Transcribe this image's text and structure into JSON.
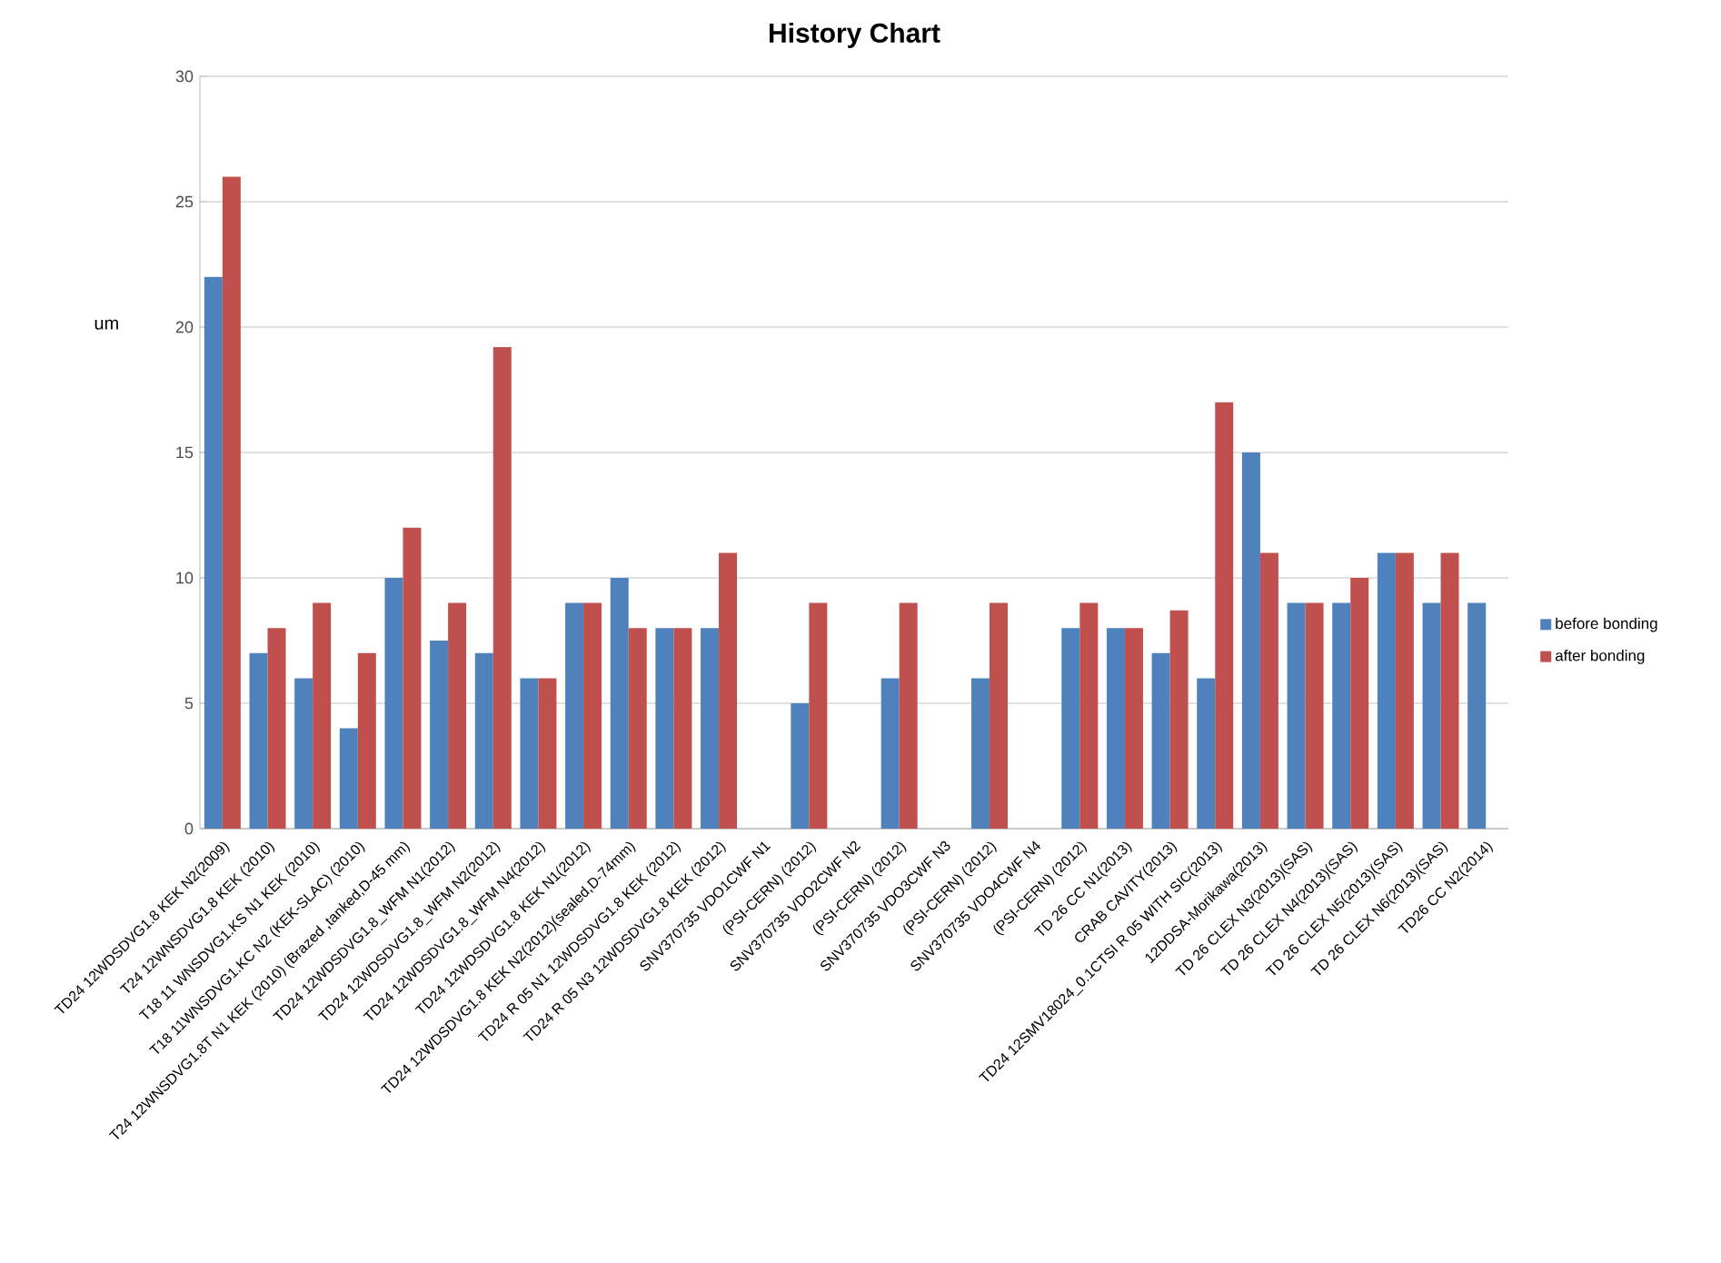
{
  "chart_data": {
    "type": "bar",
    "title": "History Chart",
    "ylabel": "um",
    "categories": [
      "TD24 12WDSDVG1.8 KEK N2(2009)",
      "T24 12WNSDVG1.8 KEK (2010)",
      "T18 11 WNSDVG1.KS N1 KEK (2010)",
      "T18 11WNSDVG1.KC N2 (KEK-SLAC) (2010)",
      "T24 12WNSDVG1.8T N1 KEK (2010) (Brazed ,tanked,D-45 mm)",
      "TD24 12WDSDVG1.8_WFM N1(2012)",
      "TD24 12WDSDVG1.8_WFM N2(2012)",
      "TD24 12WDSDVG1.8_WFM N4(2012)",
      "TD24 12WDSDVG1.8 KEK N1(2012)",
      "TD24 12WDSDVG1.8 KEK N2(2012)(sealed,D-74mm)",
      "TD24 R 05 N1 12WDSDVG1.8 KEK (2012)",
      "TD24 R 05 N3 12WDSDVG1.8 KEK (2012)",
      "SNV370735 VDO1CWF  N1",
      "(PSI-CERN) (2012)",
      "SNV370735 VDO2CWF  N2",
      "(PSI-CERN) (2012)",
      "SNV370735 VDO3CWF  N3",
      "(PSI-CERN) (2012)",
      "SNV370735 VDO4CWF  N4",
      "(PSI-CERN) (2012)",
      "TD 26 CC N1(2013)",
      "CRAB CAVITY(2013)",
      "TD24 12SMV18024_0.1CTSI  R 05 WITH SIC(2013)",
      "12DDSA-Morikawa(2013)",
      "TD 26 CLEX N3(2013)(SAS)",
      "TD 26 CLEX N4(2013)(SAS)",
      "TD 26 CLEX N5(2013)(SAS)",
      "TD 26 CLEX N6(2013)(SAS)",
      "TD26 CC N2(2014)"
    ],
    "series": [
      {
        "name": "before bonding",
        "color": "#4f81bd",
        "values": [
          22,
          7,
          6,
          4,
          10,
          7.5,
          7,
          6,
          9,
          10,
          8,
          8,
          null,
          5,
          null,
          6,
          null,
          6,
          null,
          8,
          8,
          7,
          6,
          15,
          9,
          9,
          11,
          9,
          9
        ]
      },
      {
        "name": "after bonding",
        "color": "#c0504d",
        "values": [
          26,
          8,
          9,
          7,
          12,
          9,
          19.2,
          6,
          9,
          8,
          8,
          11,
          null,
          9,
          null,
          9,
          null,
          9,
          null,
          9,
          8,
          8.7,
          17,
          11,
          9,
          10,
          11,
          11,
          null
        ]
      }
    ],
    "ylim": [
      0,
      30
    ],
    "yticks": [
      0,
      5,
      10,
      15,
      20,
      25,
      30
    ],
    "grid": "y",
    "legend": "right"
  }
}
